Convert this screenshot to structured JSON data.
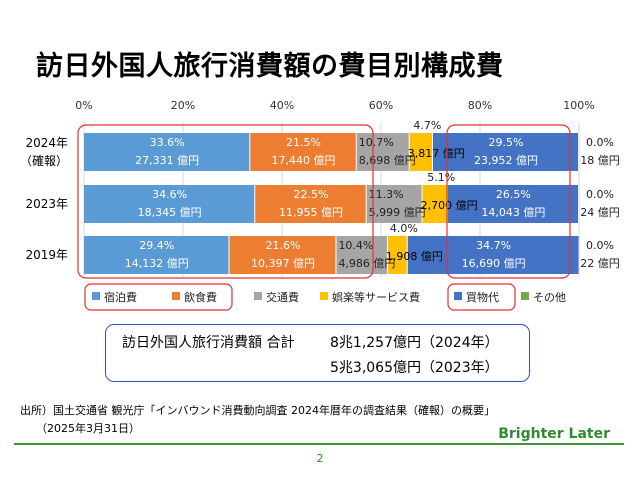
{
  "title": "訪日外国人旅行消費額の費目別構成費",
  "chart_data": {
    "type": "bar",
    "stacked": true,
    "orientation": "horizontal",
    "xlim": [
      0,
      100
    ],
    "x_ticks": [
      "0%",
      "20%",
      "40%",
      "60%",
      "80%",
      "100%"
    ],
    "grid": true,
    "legend_position": "bottom",
    "categories": [
      {
        "label": "2024年",
        "sublabel": "（確報）"
      },
      {
        "label": "2023年",
        "sublabel": ""
      },
      {
        "label": "2019年",
        "sublabel": ""
      }
    ],
    "series": [
      {
        "name": "宿泊費",
        "color": "#5b9bd5",
        "values": [
          33.6,
          34.6,
          29.4
        ],
        "pct_labels": [
          "33.6%",
          "34.6%",
          "29.4%"
        ],
        "amount_labels": [
          "27,331 億円",
          "18,345 億円",
          "14,132 億円"
        ]
      },
      {
        "name": "飲食費",
        "color": "#ed7d31",
        "values": [
          21.5,
          22.5,
          21.6
        ],
        "pct_labels": [
          "21.5%",
          "22.5%",
          "21.6%"
        ],
        "amount_labels": [
          "17,440 億円",
          "11,955 億円",
          "10,397 億円"
        ]
      },
      {
        "name": "交通費",
        "color": "#a5a5a5",
        "values": [
          10.7,
          11.3,
          10.4
        ],
        "pct_labels": [
          "10.7%",
          "11.3%",
          "10.4%"
        ],
        "amount_labels": [
          "8,698 億円",
          "5,999 億円",
          "4,986 億円"
        ]
      },
      {
        "name": "娯楽等サービス費",
        "color": "#ffc000",
        "values": [
          4.7,
          5.1,
          4.0
        ],
        "pct_labels": [
          "4.7%",
          "5.1%",
          "4.0%"
        ],
        "amount_labels": [
          "3,817 億円",
          "2,700 億円",
          "1,908 億円"
        ]
      },
      {
        "name": "買物代",
        "color": "#4472c4",
        "values": [
          29.5,
          26.5,
          34.7
        ],
        "pct_labels": [
          "29.5%",
          "26.5%",
          "34.7%"
        ],
        "amount_labels": [
          "23,952 億円",
          "14,043 億円",
          "16,690 億円"
        ]
      },
      {
        "name": "その他",
        "color": "#70ad47",
        "values": [
          0.0,
          0.0,
          0.0
        ],
        "pct_labels": [
          "0.0%",
          "0.0%",
          "0.0%"
        ],
        "amount_labels": [
          "18 億円",
          "24 億円",
          "22 億円"
        ]
      }
    ]
  },
  "totals": {
    "label": "訪日外国人旅行消費額 合計",
    "line1": "8兆1,257億円（2024年）",
    "line2": "5兆3,065億円（2023年）"
  },
  "source": {
    "line1": "出所）国土交通省 観光庁「インバウンド消費動向調査 2024年暦年の調査結果（確報）の概要」",
    "line2": "（2025年3月31日）"
  },
  "brand": "Brighter Later",
  "page_number": "2",
  "colors": {
    "highlight_red": "#e53030",
    "box_blue": "#2e4fd6",
    "brand_green": "#2e8b2e"
  }
}
